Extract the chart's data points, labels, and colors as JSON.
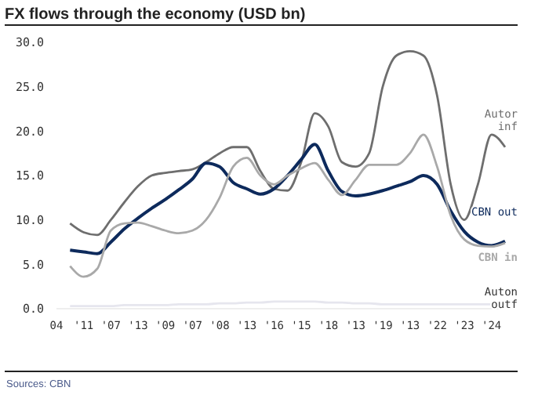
{
  "chart_data": {
    "type": "line",
    "title": "FX flows through the economy (USD bn)",
    "annotations": [
      "Sources: CBN"
    ],
    "categories": [
      "04",
      null,
      "'11",
      null,
      "'07",
      null,
      "'13",
      null,
      "'09",
      null,
      "'07",
      null,
      "'08",
      null,
      "'13",
      null,
      "'16",
      null,
      "'15",
      null,
      "'18",
      null,
      "'13",
      null,
      "'19",
      null,
      "'13",
      null,
      "'22",
      null,
      "'23",
      null,
      "'24",
      null
    ],
    "ylim": [
      0,
      30
    ],
    "yticks": [
      {
        "value": 0,
        "label": "0.0"
      },
      {
        "value": 5,
        "label": "5.0"
      },
      {
        "value": 10,
        "label": "10.0"
      },
      {
        "value": 15,
        "label": "15.0"
      },
      {
        "value": 20,
        "label": "20.0"
      },
      {
        "value": 25,
        "label": "25.0"
      },
      {
        "value": 30,
        "label": "30.0"
      }
    ],
    "grid": false,
    "legend": false,
    "series": [
      {
        "name": "Autor inf",
        "color": "#6e6e6e",
        "values": [
          null,
          9.6,
          8.6,
          8.3,
          10,
          12,
          13.8,
          15.0,
          15.3,
          15.5,
          15.7,
          16.5,
          17.5,
          18.2,
          18.2,
          15.5,
          13.5,
          13.3,
          16.5,
          22.0,
          20.5,
          16.5,
          16,
          17.5,
          25,
          28.5,
          29,
          28.5,
          24,
          14,
          10.0,
          14,
          19.6,
          18.2
        ]
      },
      {
        "name": "CBN out",
        "color": "#0d2a5c",
        "values": [
          null,
          6.6,
          6.4,
          6.2,
          7.5,
          9,
          10.2,
          11.3,
          12.3,
          13.4,
          14.6,
          16.4,
          16,
          14.2,
          13.5,
          12.9,
          13.5,
          15,
          16.8,
          18.5,
          15.5,
          13.2,
          12.7,
          12.9,
          13.3,
          13.8,
          14.3,
          15.0,
          14,
          11,
          8.7,
          7.5,
          7.1,
          7.6
        ]
      },
      {
        "name": "CBN in",
        "color": "#a9a9a9",
        "values": [
          null,
          4.8,
          3.6,
          4.5,
          8.8,
          9.6,
          9.7,
          9.3,
          8.8,
          8.5,
          8.8,
          10,
          12.5,
          16,
          17,
          15,
          14,
          15,
          15.8,
          16.4,
          14.5,
          12.8,
          14.5,
          16.2,
          16.2,
          16.2,
          17.5,
          19.6,
          16,
          10.5,
          7.8,
          7.1,
          7.0,
          7.4
        ]
      },
      {
        "name": "Auton outf",
        "color": "#e6e6ee",
        "values": [
          null,
          0.3,
          0.3,
          0.3,
          0.3,
          0.4,
          0.4,
          0.4,
          0.4,
          0.5,
          0.5,
          0.5,
          0.6,
          0.6,
          0.7,
          0.7,
          0.8,
          0.8,
          0.8,
          0.8,
          0.7,
          0.7,
          0.6,
          0.6,
          0.5,
          0.5,
          0.5,
          0.5,
          0.5,
          0.5,
          0.5,
          0.5,
          0.5,
          0.5
        ]
      }
    ]
  }
}
